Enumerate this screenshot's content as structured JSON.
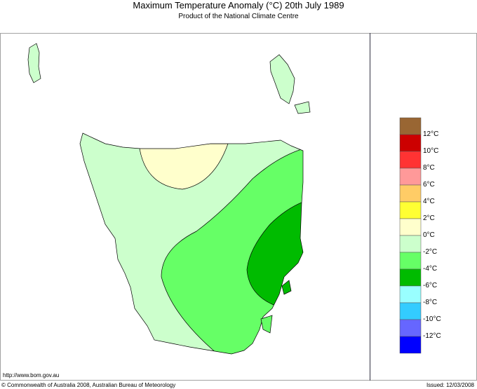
{
  "title": "Maximum Temperature Anomaly (°C)  20th July 1989",
  "subtitle": "Product of the National Climate Centre",
  "footer": {
    "url": "http://www.bom.gov.au",
    "copyright": "© Commonwealth of Australia 2008, Australian Bureau of Meteorology",
    "issued": "Issued: 12/03/2008"
  },
  "legend": {
    "colors": [
      "#996633",
      "#cc0000",
      "#ff3333",
      "#ff9999",
      "#ffcc66",
      "#ffff33",
      "#ffffcc",
      "#ccffcc",
      "#66ff66",
      "#00bb00",
      "#99ffff",
      "#33ccff",
      "#6666ff",
      "#0000ff"
    ],
    "labels": [
      "12°C",
      "10°C",
      "8°C",
      "6°C",
      "4°C",
      "2°C",
      "0°C",
      "-2°C",
      "-4°C",
      "-6°C",
      "-8°C",
      "-10°C",
      "-12°C"
    ]
  },
  "map": {
    "region": "Tasmania",
    "zones": [
      {
        "range": "-2°C to 0°C",
        "color": "#ccffcc"
      },
      {
        "range": "0°C to 2°C",
        "color": "#ffffcc"
      },
      {
        "range": "-4°C to -2°C",
        "color": "#66ff66"
      },
      {
        "range": "-6°C to -4°C",
        "color": "#00bb00"
      }
    ]
  }
}
